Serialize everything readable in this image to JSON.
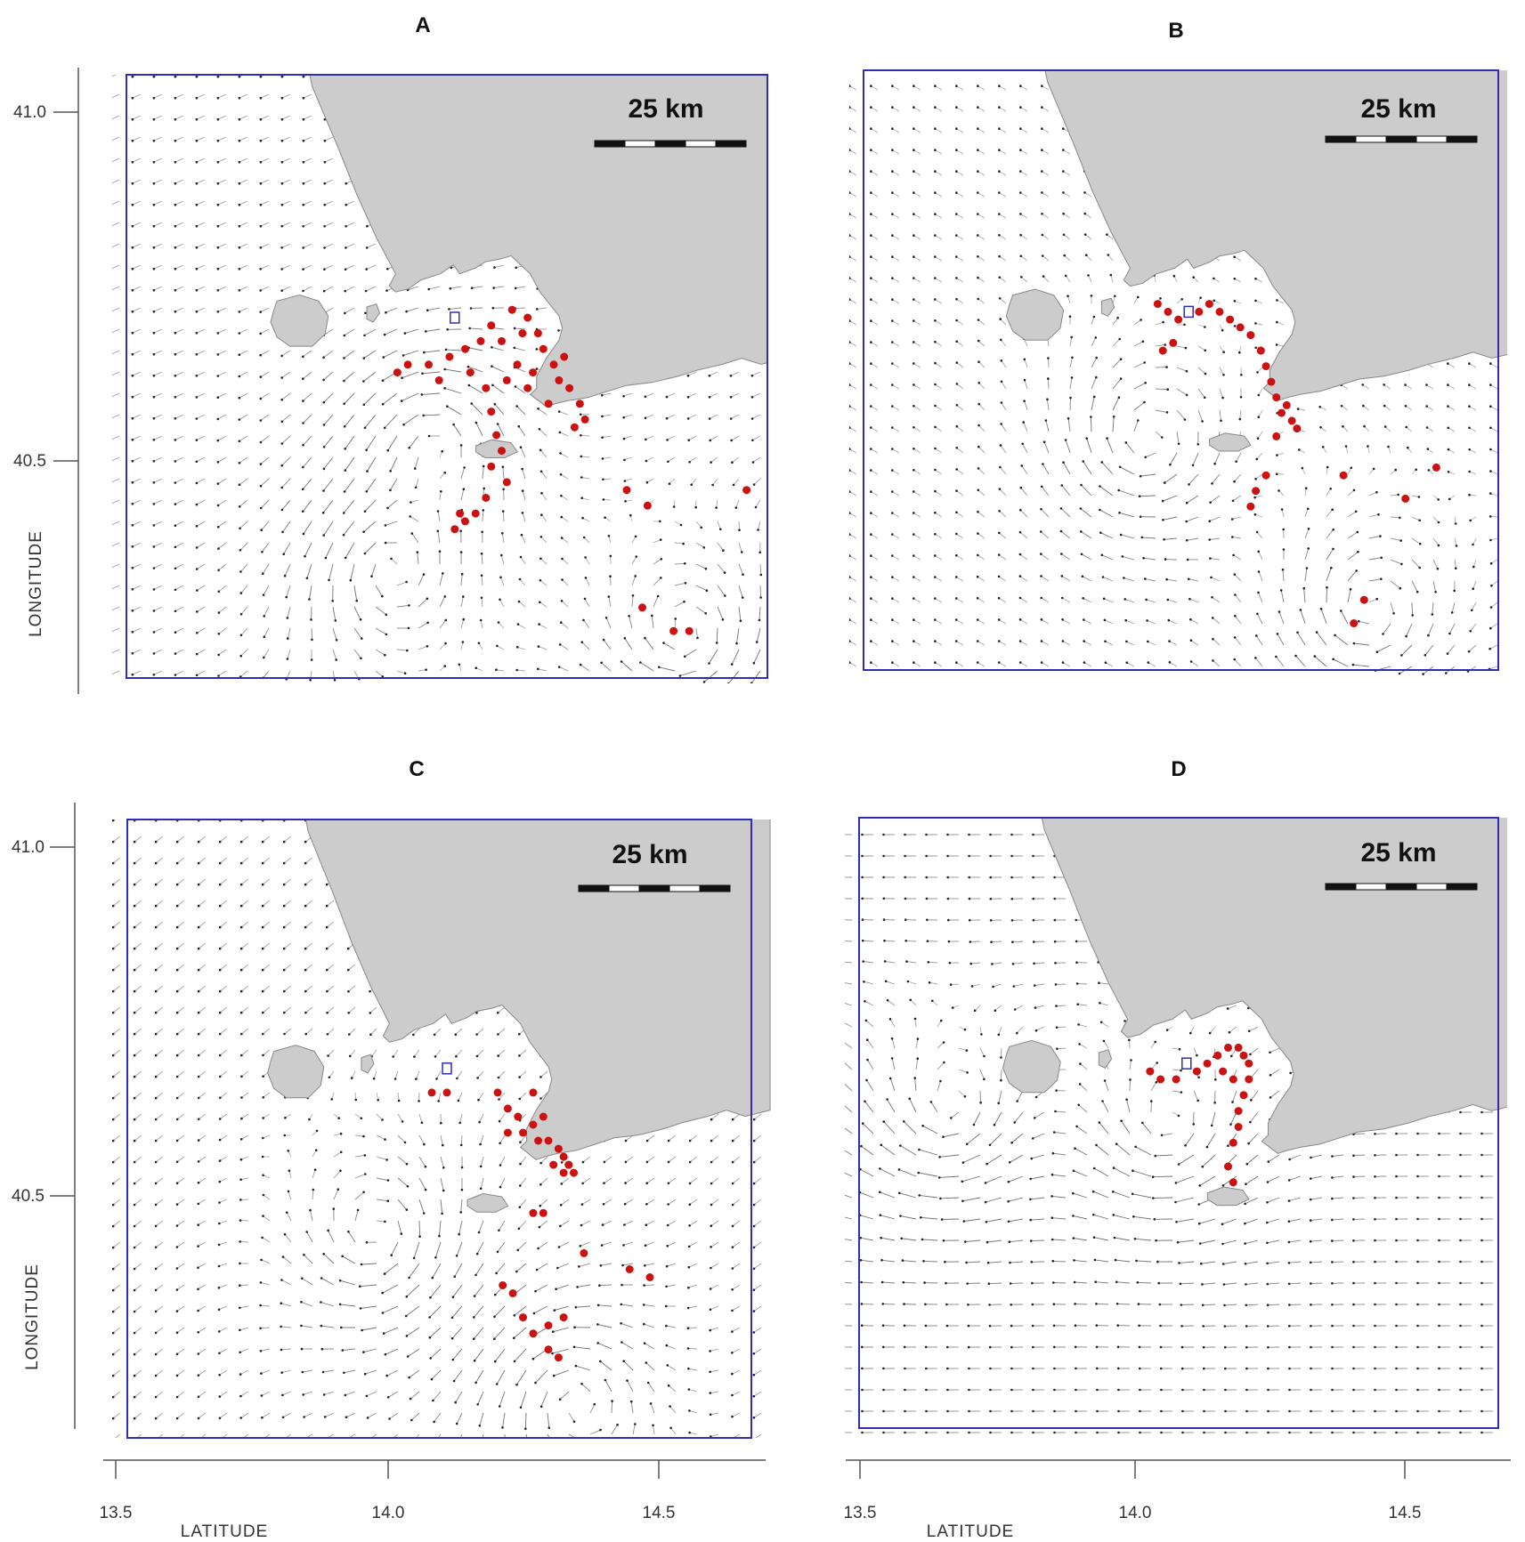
{
  "panels": [
    {
      "id": "A",
      "label": "A",
      "scale_label": "25 km",
      "eddies": [
        [
          14.1,
          40.64,
          1
        ],
        [
          14.0,
          40.47,
          1
        ],
        [
          14.58,
          40.38,
          -1
        ]
      ],
      "current": [
        -0.55,
        -0.25
      ],
      "particles": [
        [
          14.2,
          40.78
        ],
        [
          14.24,
          40.8
        ],
        [
          14.27,
          40.79
        ],
        [
          14.29,
          40.77
        ],
        [
          14.22,
          40.76
        ],
        [
          14.18,
          40.76
        ],
        [
          14.15,
          40.75
        ],
        [
          14.12,
          40.74
        ],
        [
          14.08,
          40.73
        ],
        [
          14.04,
          40.73
        ],
        [
          14.02,
          40.72
        ],
        [
          14.3,
          40.75
        ],
        [
          14.32,
          40.73
        ],
        [
          14.33,
          40.71
        ],
        [
          14.35,
          40.7
        ],
        [
          14.37,
          40.68
        ],
        [
          14.38,
          40.66
        ],
        [
          14.36,
          40.65
        ],
        [
          14.31,
          40.68
        ],
        [
          14.27,
          40.7
        ],
        [
          14.23,
          40.71
        ],
        [
          14.19,
          40.7
        ],
        [
          14.2,
          40.67
        ],
        [
          14.21,
          40.64
        ],
        [
          14.22,
          40.62
        ],
        [
          14.2,
          40.6
        ],
        [
          14.23,
          40.58
        ],
        [
          14.19,
          40.56
        ],
        [
          14.17,
          40.54
        ],
        [
          14.15,
          40.53
        ],
        [
          14.13,
          40.52
        ],
        [
          14.25,
          40.73
        ],
        [
          14.28,
          40.72
        ],
        [
          14.16,
          40.72
        ],
        [
          14.1,
          40.71
        ],
        [
          14.46,
          40.57
        ],
        [
          14.5,
          40.55
        ],
        [
          14.69,
          40.57
        ],
        [
          14.49,
          40.42
        ],
        [
          14.55,
          40.39
        ],
        [
          14.58,
          40.39
        ],
        [
          14.14,
          40.54
        ],
        [
          14.26,
          40.77
        ],
        [
          14.34,
          40.74
        ]
      ]
    },
    {
      "id": "B",
      "label": "B",
      "scale_label": "25 km",
      "eddies": [
        [
          14.05,
          40.62,
          -1
        ],
        [
          14.48,
          40.4,
          -1
        ]
      ],
      "current": [
        -0.35,
        0.2
      ],
      "particles": [
        [
          14.17,
          40.8
        ],
        [
          14.19,
          40.79
        ],
        [
          14.21,
          40.78
        ],
        [
          14.23,
          40.77
        ],
        [
          14.25,
          40.76
        ],
        [
          14.27,
          40.74
        ],
        [
          14.28,
          40.72
        ],
        [
          14.29,
          40.7
        ],
        [
          14.3,
          40.68
        ],
        [
          14.32,
          40.67
        ],
        [
          14.33,
          40.65
        ],
        [
          14.34,
          40.64
        ],
        [
          14.31,
          40.66
        ],
        [
          14.3,
          40.63
        ],
        [
          14.28,
          40.58
        ],
        [
          14.26,
          40.56
        ],
        [
          14.25,
          40.54
        ],
        [
          14.07,
          40.8
        ],
        [
          14.09,
          40.79
        ],
        [
          14.11,
          40.78
        ],
        [
          14.1,
          40.75
        ],
        [
          14.08,
          40.74
        ],
        [
          14.43,
          40.58
        ],
        [
          14.55,
          40.55
        ],
        [
          14.61,
          40.59
        ],
        [
          14.45,
          40.39
        ],
        [
          14.47,
          40.42
        ],
        [
          14.15,
          40.79
        ]
      ]
    },
    {
      "id": "C",
      "label": "C",
      "scale_label": "25 km",
      "eddies": [
        [
          14.0,
          40.58,
          -1
        ],
        [
          14.38,
          40.38,
          1
        ]
      ],
      "current": [
        -0.45,
        -0.35
      ],
      "particles": [
        [
          14.23,
          40.76
        ],
        [
          14.25,
          40.74
        ],
        [
          14.27,
          40.73
        ],
        [
          14.3,
          40.72
        ],
        [
          14.33,
          40.7
        ],
        [
          14.35,
          40.69
        ],
        [
          14.36,
          40.68
        ],
        [
          14.37,
          40.67
        ],
        [
          14.38,
          40.66
        ],
        [
          14.36,
          40.66
        ],
        [
          14.34,
          40.67
        ],
        [
          14.31,
          40.7
        ],
        [
          14.28,
          40.71
        ],
        [
          14.25,
          40.71
        ],
        [
          14.3,
          40.76
        ],
        [
          14.32,
          40.73
        ],
        [
          14.3,
          40.61
        ],
        [
          14.32,
          40.61
        ],
        [
          14.1,
          40.76
        ],
        [
          14.13,
          40.76
        ],
        [
          14.26,
          40.51
        ],
        [
          14.28,
          40.48
        ],
        [
          14.3,
          40.46
        ],
        [
          14.33,
          40.44
        ],
        [
          14.35,
          40.43
        ],
        [
          14.33,
          40.47
        ],
        [
          14.36,
          40.48
        ],
        [
          14.4,
          40.56
        ],
        [
          14.49,
          40.54
        ],
        [
          14.53,
          40.53
        ],
        [
          14.24,
          40.52
        ],
        [
          14.37,
          40.67
        ]
      ]
    },
    {
      "id": "D",
      "label": "D",
      "scale_label": "25 km",
      "eddies": [
        [
          14.1,
          40.7,
          -1
        ],
        [
          13.68,
          40.72,
          -1
        ]
      ],
      "current": [
        -1.0,
        0.0
      ],
      "particles": [
        [
          14.15,
          40.78
        ],
        [
          14.17,
          40.79
        ],
        [
          14.19,
          40.8
        ],
        [
          14.21,
          40.81
        ],
        [
          14.23,
          40.81
        ],
        [
          14.24,
          40.8
        ],
        [
          14.25,
          40.79
        ],
        [
          14.25,
          40.77
        ],
        [
          14.24,
          40.75
        ],
        [
          14.23,
          40.73
        ],
        [
          14.23,
          40.71
        ],
        [
          14.22,
          40.69
        ],
        [
          14.21,
          40.66
        ],
        [
          14.22,
          40.64
        ],
        [
          14.06,
          40.78
        ],
        [
          14.08,
          40.77
        ],
        [
          14.11,
          40.77
        ],
        [
          14.2,
          40.78
        ],
        [
          14.22,
          40.77
        ]
      ]
    }
  ],
  "x_axis": {
    "title": "LATITUDE",
    "ticks": [
      "13.5",
      "14.0",
      "14.5"
    ]
  },
  "y_axis": {
    "title": "LONGITUDE",
    "ticks": [
      "41.0",
      "40.5"
    ]
  },
  "colors": {
    "land": "#cccccc",
    "frame": "#2d2db8",
    "particle": "#cc1111",
    "arrow": "#444444",
    "source": "#2d2db8"
  }
}
